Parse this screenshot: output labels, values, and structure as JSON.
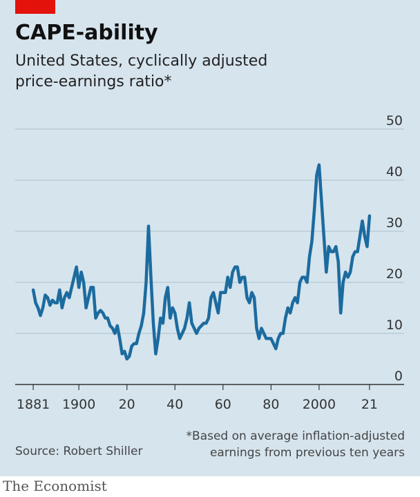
{
  "chart_data": {
    "type": "line",
    "title": "CAPE-ability",
    "subtitle": "United States, cyclically adjusted price-earnings ratio*",
    "note": "*Based on average inflation-adjusted earnings from previous ten years",
    "source": "Source: Robert Shiller",
    "brand": "The Economist",
    "color": "#1c6b9f",
    "grid": true,
    "x": [
      1881,
      1882,
      1883,
      1884,
      1885,
      1886,
      1887,
      1888,
      1889,
      1890,
      1891,
      1892,
      1893,
      1894,
      1895,
      1896,
      1897,
      1898,
      1899,
      1900,
      1901,
      1902,
      1903,
      1904,
      1905,
      1906,
      1907,
      1908,
      1909,
      1910,
      1911,
      1912,
      1913,
      1914,
      1915,
      1916,
      1917,
      1918,
      1919,
      1920,
      1921,
      1922,
      1923,
      1924,
      1925,
      1926,
      1927,
      1928,
      1929,
      1930,
      1931,
      1932,
      1933,
      1934,
      1935,
      1936,
      1937,
      1938,
      1939,
      1940,
      1941,
      1942,
      1943,
      1944,
      1945,
      1946,
      1947,
      1948,
      1949,
      1950,
      1951,
      1952,
      1953,
      1954,
      1955,
      1956,
      1957,
      1958,
      1959,
      1960,
      1961,
      1962,
      1963,
      1964,
      1965,
      1966,
      1967,
      1968,
      1969,
      1970,
      1971,
      1972,
      1973,
      1974,
      1975,
      1976,
      1977,
      1978,
      1979,
      1980,
      1981,
      1982,
      1983,
      1984,
      1985,
      1986,
      1987,
      1988,
      1989,
      1990,
      1991,
      1992,
      1993,
      1994,
      1995,
      1996,
      1997,
      1998,
      1999,
      2000,
      2001,
      2002,
      2003,
      2004,
      2005,
      2006,
      2007,
      2008,
      2009,
      2010,
      2011,
      2012,
      2013,
      2014,
      2015,
      2016,
      2017,
      2018,
      2019,
      2020,
      2021
    ],
    "values": [
      18.5,
      16,
      15,
      13.5,
      15,
      17.5,
      17,
      15.5,
      16.5,
      16,
      16,
      18.5,
      15,
      17,
      18,
      17,
      19,
      21,
      23,
      19,
      22,
      20,
      15,
      17,
      19,
      19,
      13,
      14,
      14.5,
      14,
      13,
      13,
      11.5,
      11,
      10,
      11.5,
      9,
      6,
      6.5,
      5,
      5.5,
      7.5,
      8,
      8,
      10,
      11.5,
      14,
      20,
      31,
      21,
      12,
      6,
      9,
      13,
      12,
      17,
      19,
      13,
      15,
      14,
      11,
      9,
      10,
      11,
      13,
      16,
      12,
      11,
      10,
      11,
      11.5,
      12,
      12,
      13,
      17,
      18,
      16,
      14,
      18,
      18,
      18,
      21,
      19,
      22,
      23,
      23,
      20,
      21,
      21,
      17,
      16,
      18,
      17,
      11,
      9,
      11,
      10,
      9,
      9,
      9,
      8,
      7,
      9,
      10,
      10,
      13,
      15,
      14,
      16,
      17,
      16,
      20,
      21,
      21,
      20,
      25,
      28,
      34,
      41,
      43,
      36,
      29,
      22,
      27,
      26,
      26,
      27,
      24,
      14,
      20,
      22,
      21,
      22,
      25,
      26,
      26,
      29,
      32,
      29,
      27,
      33
    ],
    "xlim": [
      1873.5,
      2035.4
    ],
    "ylim": [
      0,
      50
    ],
    "xticks": [
      1881,
      1900,
      {
        "value": 1920,
        "label": "20"
      },
      {
        "value": 1940,
        "label": "40"
      },
      {
        "value": 1960,
        "label": "60"
      },
      {
        "value": 1980,
        "label": "80"
      },
      2000,
      {
        "value": 2021,
        "label": "21"
      }
    ],
    "yticks": [
      0,
      10,
      20,
      30,
      40,
      50
    ]
  }
}
